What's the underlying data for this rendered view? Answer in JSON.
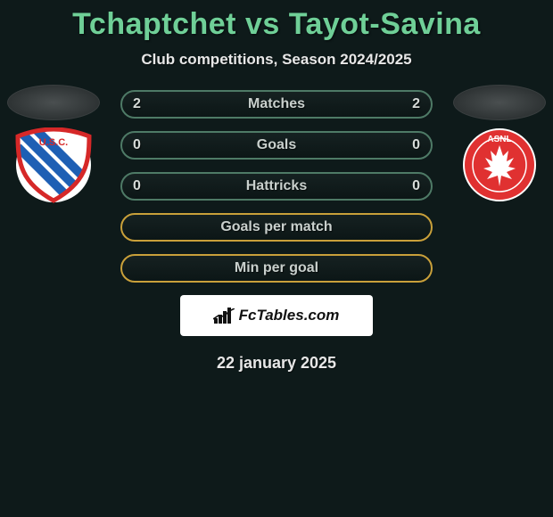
{
  "title": "Tchaptchet vs Tayot-Savina",
  "subtitle": "Club competitions, Season 2024/2025",
  "date": "22 january 2025",
  "branding_text": "FcTables.com",
  "colors": {
    "title": "#6fcf97",
    "text": "#e7e7e7",
    "row_text": "#c9d0cd",
    "background": "#0e1a1a",
    "branding_bg": "#ffffff"
  },
  "rows": [
    {
      "label": "Matches",
      "left": "2",
      "right": "2",
      "border": "#4e7a66"
    },
    {
      "label": "Goals",
      "left": "0",
      "right": "0",
      "border": "#4e7a66"
    },
    {
      "label": "Hattricks",
      "left": "0",
      "right": "0",
      "border": "#4e7a66"
    },
    {
      "label": "Goals per match",
      "left": "",
      "right": "",
      "border": "#c9a03a"
    },
    {
      "label": "Min per goal",
      "left": "",
      "right": "",
      "border": "#c9a03a"
    }
  ],
  "left_badge": {
    "bg": "#ffffff",
    "shield_stroke": "#d62828",
    "stripes": "#1e5fb4",
    "initials": "U.S.C."
  },
  "right_badge": {
    "bg": "#e03131",
    "ring": "#ffffff",
    "thistle": "#ffffff",
    "top_text": "ASNL"
  }
}
